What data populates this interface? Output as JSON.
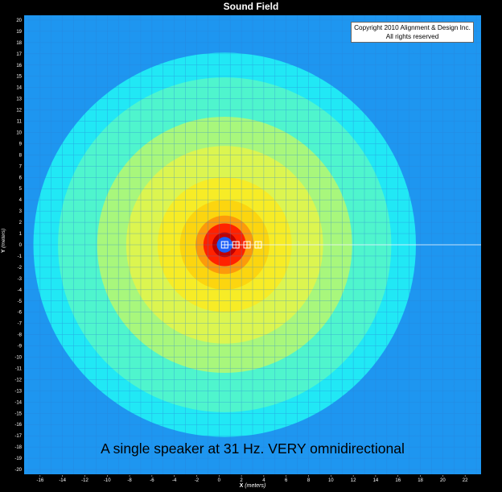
{
  "title": "Sound Field",
  "copyright": {
    "line1": "Copyright 2010 Alignment & Design Inc.",
    "line2": "All rights reserved"
  },
  "caption": "A single speaker at 31 Hz. VERY omnidirectional",
  "chart_data": {
    "type": "heatmap",
    "title": "Sound Field",
    "xlabel": {
      "name": "X",
      "unit": "(meters)"
    },
    "ylabel": {
      "name": "Y",
      "unit": "(meters)"
    },
    "xlim": [
      -17.5,
      23.5
    ],
    "ylim": [
      -20.5,
      20.5
    ],
    "x_ticks": [
      -16,
      -14,
      -12,
      -10,
      -8,
      -6,
      -4,
      -2,
      0,
      2,
      4,
      6,
      8,
      10,
      12,
      14,
      16,
      18,
      20,
      22
    ],
    "y_ticks": [
      -20,
      -19,
      -18,
      -17,
      -16,
      -15,
      -14,
      -13,
      -12,
      -11,
      -10,
      -9,
      -8,
      -7,
      -6,
      -5,
      -4,
      -3,
      -2,
      -1,
      0,
      1,
      2,
      3,
      4,
      5,
      6,
      7,
      8,
      9,
      10,
      11,
      12,
      13,
      14,
      15,
      16,
      17,
      18,
      19,
      20
    ],
    "grid": true,
    "source": {
      "x": 0.5,
      "y": 0
    },
    "contour_bands": [
      {
        "radius": 24.0,
        "color": "#1e96f0"
      },
      {
        "radius": 17.1,
        "color": "#21e8f5"
      },
      {
        "radius": 14.9,
        "color": "#4ff5cd"
      },
      {
        "radius": 11.4,
        "color": "#a8f77c"
      },
      {
        "radius": 8.8,
        "color": "#dcf550"
      },
      {
        "radius": 6.0,
        "color": "#f7ec26"
      },
      {
        "radius": 4.0,
        "color": "#fcd50f"
      },
      {
        "radius": 2.6,
        "color": "#fc9a0b"
      },
      {
        "radius": 1.9,
        "color": "#ff2200"
      },
      {
        "radius": 1.1,
        "color": "#c00000"
      },
      {
        "radius": 0.7,
        "color": "#1c5ef8"
      }
    ],
    "markers": [
      {
        "x": 0.5,
        "y": 0
      },
      {
        "x": 1.5,
        "y": 0
      },
      {
        "x": 2.5,
        "y": 0
      },
      {
        "x": 3.5,
        "y": 0
      }
    ],
    "axis_line": {
      "y": 0,
      "from_x": 0.5,
      "color": "#ffffff"
    }
  }
}
